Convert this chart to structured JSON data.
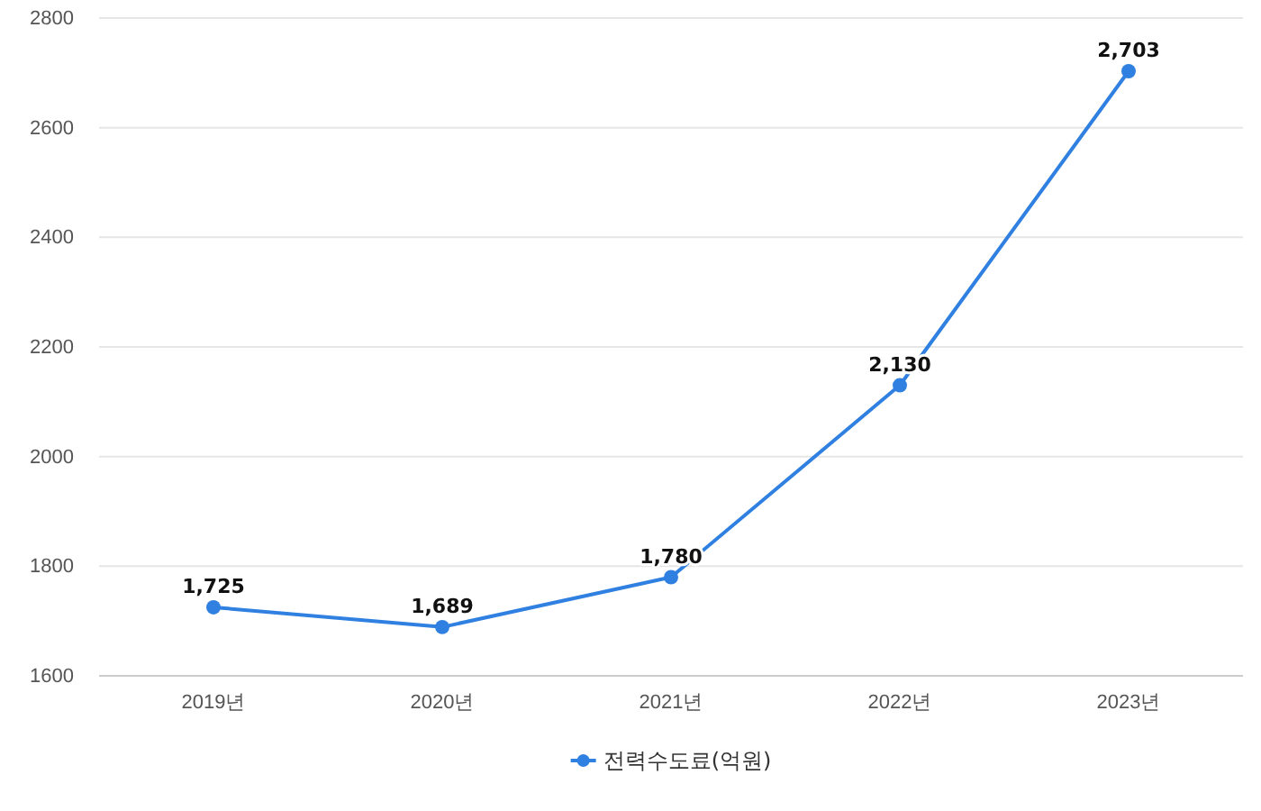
{
  "chart_data": {
    "type": "line",
    "categories": [
      "2019년",
      "2020년",
      "2021년",
      "2022년",
      "2023년"
    ],
    "series": [
      {
        "name": "전력수도료(억원)",
        "color": "#2f80e0",
        "values": [
          1725,
          1689,
          1780,
          2130,
          2703
        ],
        "value_labels": [
          "1,725",
          "1,689",
          "1,780",
          "2,130",
          "2,703"
        ]
      }
    ],
    "ylim": [
      1600,
      2800
    ],
    "yticks": [
      1600,
      1800,
      2000,
      2200,
      2400,
      2600,
      2800
    ],
    "grid": "y",
    "legend": "bottom",
    "marker": "circle",
    "line_style": "solid"
  }
}
